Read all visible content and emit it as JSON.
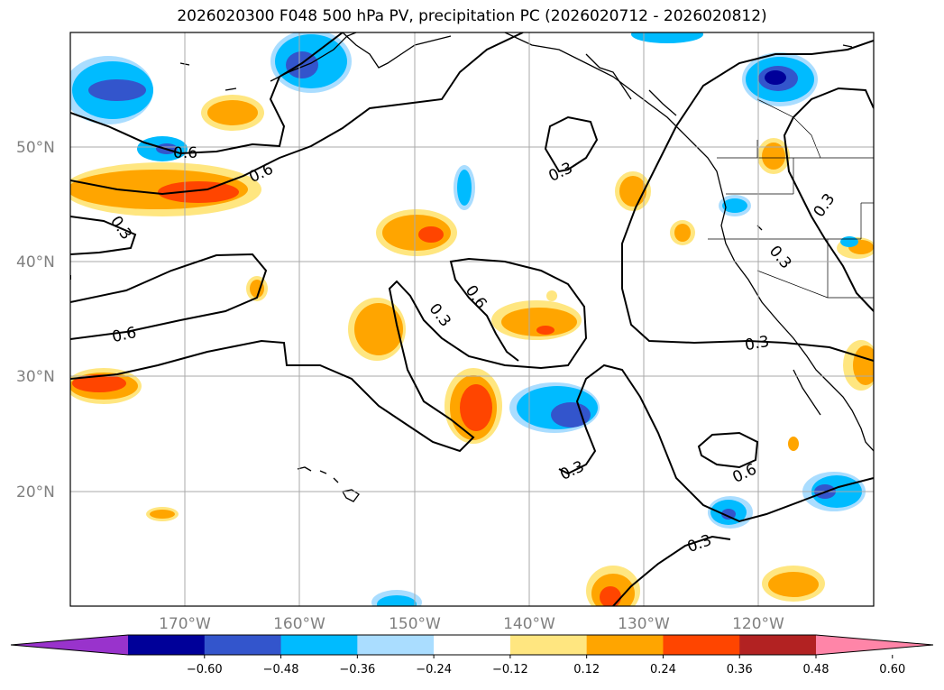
{
  "title": "2026020300 F048 500 hPa PV, precipitation PC (2026020712 - 2026020812)",
  "map": {
    "lat_labels": [
      "50°N",
      "40°N",
      "30°N",
      "20°N"
    ],
    "lon_labels": [
      "170°W",
      "160°W",
      "150°W",
      "140°W",
      "130°W",
      "120°W"
    ],
    "lat_values": [
      50,
      40,
      30,
      20
    ],
    "lon_values": [
      -170,
      -160,
      -150,
      -140,
      -130,
      -120
    ],
    "extent": {
      "lon_min": -180,
      "lon_max": -110,
      "lat_min": 10,
      "lat_max": 60
    },
    "contour_labels": [
      "0.6",
      "0.6",
      "0.3",
      "0.6",
      "0.3",
      "0.6",
      "0.3",
      "0.3",
      "0.3",
      "0.3",
      "0.3",
      "0.6",
      "0.3"
    ],
    "grid": true
  },
  "colorbar": {
    "ticks": [
      "−0.60",
      "−0.48",
      "−0.36",
      "−0.24",
      "−0.12",
      "0.12",
      "0.24",
      "0.36",
      "0.48",
      "0.60"
    ],
    "colors": [
      "#9933cc",
      "#000099",
      "#3355cc",
      "#00bbff",
      "#aaddff",
      "#ffffff",
      "#ffe680",
      "#ffa500",
      "#ff4500",
      "#b22222",
      "#ff85a8"
    ]
  }
}
